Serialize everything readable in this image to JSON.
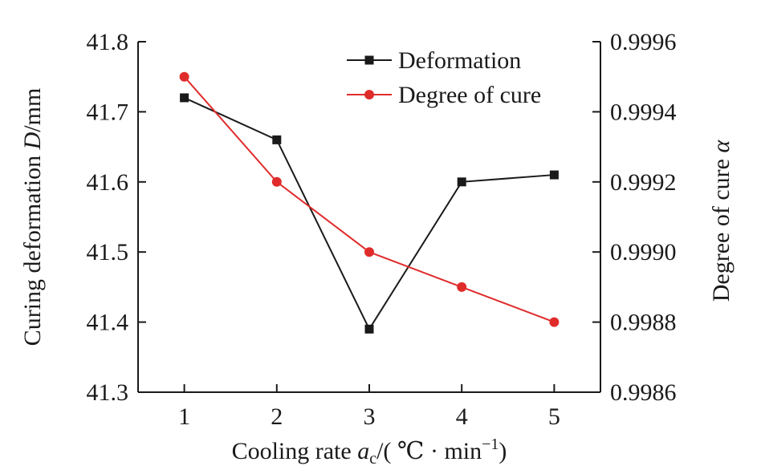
{
  "chart_data": {
    "type": "line",
    "x": [
      1,
      2,
      3,
      4,
      5
    ],
    "xticks": [
      "1",
      "2",
      "3",
      "4",
      "5"
    ],
    "xlim": [
      0.5,
      5.5
    ],
    "xlabel": {
      "prefix": "Cooling rate ",
      "var": "a",
      "sub": "c",
      "mid": "/( ℃ · min",
      "sup": "−1",
      "suffix": ")"
    },
    "ylabel_left": {
      "prefix": "Curing deformation ",
      "var": "D",
      "suffix": "/mm"
    },
    "ylabel_right": {
      "prefix": "Degree of cure ",
      "var": "α"
    },
    "ylim_left": [
      41.3,
      41.8
    ],
    "yticks_left": [
      "41.3",
      "41.4",
      "41.5",
      "41.6",
      "41.7",
      "41.8"
    ],
    "ylim_right": [
      0.9986,
      0.9996
    ],
    "yticks_right": [
      "0.9986",
      "0.9988",
      "0.9990",
      "0.9992",
      "0.9994",
      "0.9996"
    ],
    "grid": false,
    "legend_position": "top-right",
    "series": [
      {
        "name": "Deformation",
        "axis": "left",
        "marker": "square",
        "color": "#1a1a1a",
        "values": [
          41.72,
          41.66,
          41.39,
          41.6,
          41.61
        ]
      },
      {
        "name": "Degree of cure",
        "axis": "right",
        "marker": "circle",
        "color": "#e02b2b",
        "values": [
          0.9995,
          0.9992,
          0.999,
          0.9989,
          0.9988
        ]
      }
    ]
  }
}
